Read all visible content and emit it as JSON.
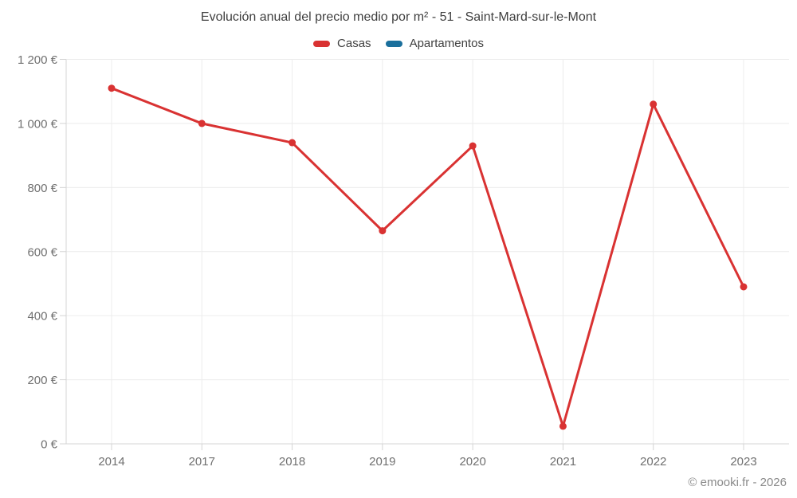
{
  "title": "Evolución anual del precio medio por m² - 51 - Saint-Mard-sur-le-Mont",
  "footer": "© emooki.fr - 2026",
  "legend": [
    {
      "label": "Casas",
      "color": "#d93232"
    },
    {
      "label": "Apartamentos",
      "color": "#1a6f9c"
    }
  ],
  "colors": {
    "grid": "#ececec",
    "axis": "#d4d4d4",
    "tick_label": "#707070",
    "title_text": "#3f3f3f",
    "footer_text": "#8a8a8a",
    "casas_red": "#d93232",
    "apartamentos_blue": "#1a6f9c"
  },
  "chart_data": {
    "type": "line",
    "title": "Evolución anual del precio medio por m² - 51 - Saint-Mard-sur-le-Mont",
    "categories": [
      "2014",
      "2017",
      "2018",
      "2019",
      "2020",
      "2021",
      "2022",
      "2023"
    ],
    "series": [
      {
        "name": "Casas",
        "color": "#d93232",
        "values": [
          1110,
          1000,
          940,
          665,
          930,
          55,
          1060,
          490
        ]
      },
      {
        "name": "Apartamentos",
        "color": "#1a6f9c",
        "values": [
          null,
          null,
          null,
          null,
          null,
          null,
          null,
          null
        ]
      }
    ],
    "xlabel": "",
    "ylabel": "",
    "ylim": [
      0,
      1200
    ],
    "ytick_step": 200,
    "ytick_labels": [
      "0 €",
      "200 €",
      "400 €",
      "600 €",
      "800 €",
      "1 000 €",
      "1 200 €"
    ],
    "currency_suffix": " €",
    "grid": "on",
    "legend_position": "top"
  }
}
